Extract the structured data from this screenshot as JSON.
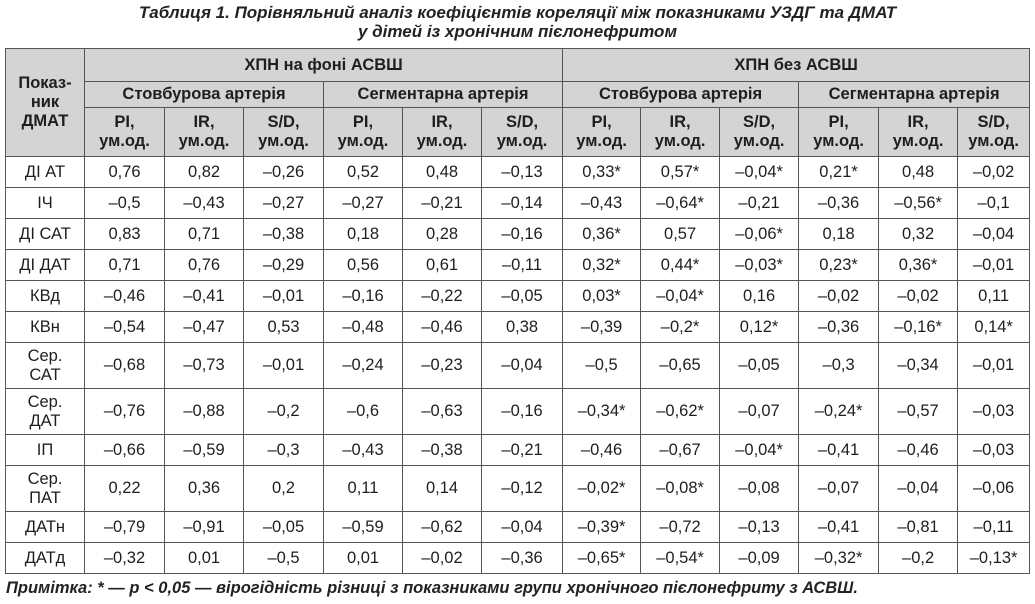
{
  "caption": {
    "line1": "Таблиця 1. Порівняльний аналіз коефіцієнтів кореляції між показниками УЗДГ та ДМАТ",
    "line2": "у дітей із хронічним пієлонефритом"
  },
  "table": {
    "corner_header": "Показ-\nник\nДМАТ",
    "groups": [
      "ХПН на фоні АСВШ",
      "ХПН без АСВШ"
    ],
    "arteries": [
      "Стовбурова артерія",
      "Сегментарна артерія",
      "Стовбурова артерія",
      "Сегментарна артерія"
    ],
    "indices": [
      "PI,\nум.од.",
      "IR,\nум.од.",
      "S/D,\nум.од.",
      "PI,\nум.од.",
      "IR,\nум.од.",
      "S/D,\nум.од.",
      "PI,\nум.од.",
      "IR,\nум.од.",
      "S/D,\nум.од.",
      "PI,\nум.од.",
      "IR,\nум.од.",
      "S/D,\nум.од."
    ],
    "rows": [
      {
        "label": "ДІ АТ",
        "values": [
          "0,76",
          "0,82",
          "–0,26",
          "0,52",
          "0,48",
          "–0,13",
          "0,33*",
          "0,57*",
          "–0,04*",
          "0,21*",
          "0,48",
          "–0,02"
        ]
      },
      {
        "label": "ІЧ",
        "values": [
          "–0,5",
          "–0,43",
          "–0,27",
          "–0,27",
          "–0,21",
          "–0,14",
          "–0,43",
          "–0,64*",
          "–0,21",
          "–0,36",
          "–0,56*",
          "–0,1"
        ]
      },
      {
        "label": "ДІ САТ",
        "values": [
          "0,83",
          "0,71",
          "–0,38",
          "0,18",
          "0,28",
          "–0,16",
          "0,36*",
          "0,57",
          "–0,06*",
          "0,18",
          "0,32",
          "–0,04"
        ]
      },
      {
        "label": "ДІ ДАТ",
        "values": [
          "0,71",
          "0,76",
          "–0,29",
          "0,56",
          "0,61",
          "–0,11",
          "0,32*",
          "0,44*",
          "–0,03*",
          "0,23*",
          "0,36*",
          "–0,01"
        ]
      },
      {
        "label": "КВд",
        "values": [
          "–0,46",
          "–0,41",
          "–0,01",
          "–0,16",
          "–0,22",
          "–0,05",
          "0,03*",
          "–0,04*",
          "0,16",
          "–0,02",
          "–0,02",
          "0,11"
        ]
      },
      {
        "label": "КВн",
        "values": [
          "–0,54",
          "–0,47",
          "0,53",
          "–0,48",
          "–0,46",
          "0,38",
          "–0,39",
          "–0,2*",
          "0,12*",
          "–0,36",
          "–0,16*",
          "0,14*"
        ]
      },
      {
        "label": "Сер.\nСАТ",
        "values": [
          "–0,68",
          "–0,73",
          "–0,01",
          "–0,24",
          "–0,23",
          "–0,04",
          "–0,5",
          "–0,65",
          "–0,05",
          "–0,3",
          "–0,34",
          "–0,01"
        ]
      },
      {
        "label": "Сер.\nДАТ",
        "values": [
          "–0,76",
          "–0,88",
          "–0,2",
          "–0,6",
          "–0,63",
          "–0,16",
          "–0,34*",
          "–0,62*",
          "–0,07",
          "–0,24*",
          "–0,57",
          "–0,03"
        ]
      },
      {
        "label": "ІП",
        "values": [
          "–0,66",
          "–0,59",
          "–0,3",
          "–0,43",
          "–0,38",
          "–0,21",
          "–0,46",
          "–0,67",
          "–0,04*",
          "–0,41",
          "–0,46",
          "–0,03"
        ]
      },
      {
        "label": "Сер.\nПАТ",
        "values": [
          "0,22",
          "0,36",
          "0,2",
          "0,11",
          "0,14",
          "–0,12",
          "–0,02*",
          "–0,08*",
          "–0,08",
          "–0,07",
          "–0,04",
          "–0,06"
        ]
      },
      {
        "label": "ДАТн",
        "values": [
          "–0,79",
          "–0,91",
          "–0,05",
          "–0,59",
          "–0,62",
          "–0,04",
          "–0,39*",
          "–0,72",
          "–0,13",
          "–0,41",
          "–0,81",
          "–0,11"
        ]
      },
      {
        "label": "ДАТд",
        "values": [
          "–0,32",
          "0,01",
          "–0,5",
          "0,01",
          "–0,02",
          "–0,36",
          "–0,65*",
          "–0,54*",
          "–0,09",
          "–0,32*",
          "–0,2",
          "–0,13*"
        ]
      }
    ]
  },
  "note": "Примітка: * — p < 0,05 — вірогідність різниці з показниками групи хронічного пієлонефриту з АСВШ.",
  "colors": {
    "header_bg": "#d4d4d4",
    "border": "#555555",
    "text": "#1e1e1e"
  }
}
